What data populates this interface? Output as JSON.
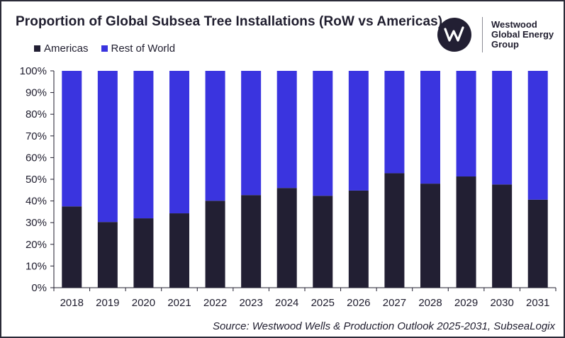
{
  "title": "Proportion of Global Subsea Tree Installations (RoW vs Americas)",
  "logo": {
    "line1": "Westwood",
    "line2": "Global Energy",
    "line3": "Group",
    "icon": "westwood-w-logo"
  },
  "source": "Source: Westwood Wells & Production Outlook 2025-2031, SubseaLogix",
  "colors": {
    "americas": "#221f33",
    "rest_of_world": "#3a34df",
    "text": "#1f1d2e"
  },
  "chart_data": {
    "type": "bar",
    "stacked": true,
    "categories": [
      "2018",
      "2019",
      "2020",
      "2021",
      "2022",
      "2023",
      "2024",
      "2025",
      "2026",
      "2027",
      "2028",
      "2029",
      "2030",
      "2031"
    ],
    "series": [
      {
        "name": "Americas",
        "values": [
          37.5,
          30.3,
          32.0,
          34.3,
          40.1,
          42.7,
          46.0,
          42.4,
          44.8,
          52.8,
          48.0,
          51.3,
          47.6,
          40.6
        ]
      },
      {
        "name": "Rest of World",
        "values": [
          62.5,
          69.7,
          68.0,
          65.7,
          59.9,
          57.3,
          54.0,
          57.6,
          55.2,
          47.2,
          52.0,
          48.7,
          52.4,
          59.4
        ]
      }
    ],
    "yticks": [
      "0%",
      "10%",
      "20%",
      "30%",
      "40%",
      "50%",
      "60%",
      "70%",
      "80%",
      "90%",
      "100%"
    ],
    "ylim": [
      0,
      100
    ],
    "xlabel": "",
    "ylabel": "",
    "legend_position": "top-left",
    "grid": false
  }
}
